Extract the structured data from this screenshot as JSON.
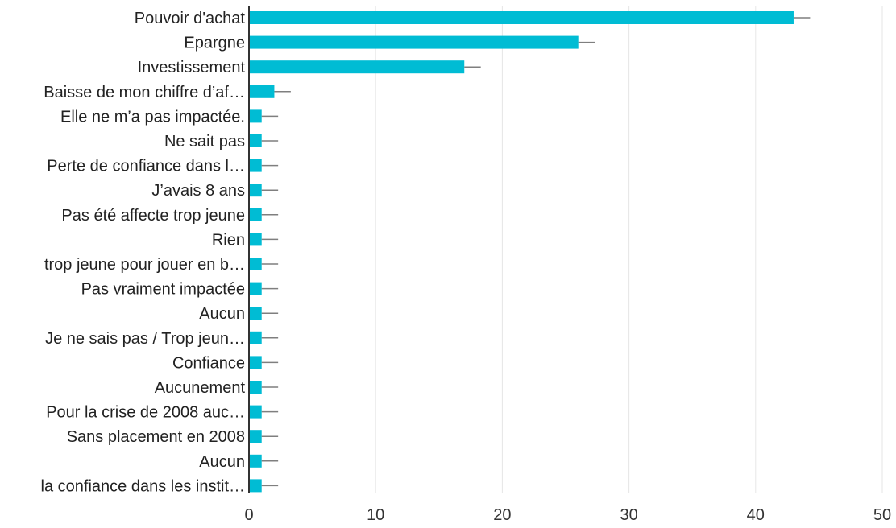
{
  "chart_data": {
    "type": "bar",
    "orientation": "horizontal",
    "title": "",
    "xlabel": "",
    "ylabel": "",
    "xlim": [
      0,
      50
    ],
    "x_ticks": [
      0,
      10,
      20,
      30,
      40,
      50
    ],
    "grid": "vertical",
    "bar_color": "#00bcd4",
    "error_bar_color": "#7f7f7f",
    "error_bar_extent": 1.3,
    "categories": [
      "Pouvoir d'achat",
      "Epargne",
      "Investissement",
      "Baisse de mon chiffre d’af…",
      "Elle ne m’a pas impactée.",
      "Ne sait pas",
      "Perte de confiance dans l…",
      "J’avais 8 ans",
      "Pas été affecte trop jeune",
      "Rien",
      "trop jeune pour jouer en b…",
      "Pas vraiment impactée",
      "Aucun",
      "Je ne sais pas / Trop jeun…",
      "Confiance",
      "Aucunement",
      "Pour la crise de 2008 auc…",
      "Sans placement en 2008",
      "Aucun",
      "la confiance dans les instit…"
    ],
    "values": [
      43,
      26,
      17,
      2,
      1,
      1,
      1,
      1,
      1,
      1,
      1,
      1,
      1,
      1,
      1,
      1,
      1,
      1,
      1,
      1
    ]
  }
}
